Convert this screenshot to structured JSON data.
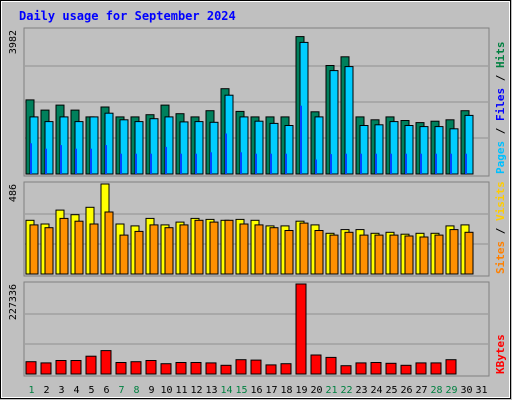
{
  "chart_data": {
    "type": "bar",
    "title": "Daily usage for September 2024",
    "days": [
      "1",
      "2",
      "3",
      "4",
      "5",
      "6",
      "7",
      "8",
      "9",
      "10",
      "11",
      "12",
      "13",
      "14",
      "15",
      "16",
      "17",
      "18",
      "19",
      "20",
      "21",
      "22",
      "23",
      "24",
      "25",
      "26",
      "27",
      "28",
      "29",
      "30",
      "31"
    ],
    "weekend_days": [
      "1",
      "7",
      "8",
      "14",
      "15",
      "21",
      "22",
      "28",
      "29"
    ],
    "panels": [
      {
        "id": "requests",
        "ymax_label": "3982",
        "ymax": 3982,
        "legend": [
          {
            "label": "Pages",
            "color": "#00c0ff"
          },
          {
            "label": "Files",
            "color": "#0000ff"
          },
          {
            "label": "Hits",
            "color": "#008040"
          }
        ],
        "legend_separator": " / ",
        "series": [
          {
            "name": "Hits",
            "color": "#00805c",
            "values": [
              2048,
              1768,
              1904,
              1768,
              1580,
              1852,
              1580,
              1580,
              1640,
              1904,
              1668,
              1580,
              1750,
              2360,
              1730,
              1580,
              1580,
              1580,
              3800,
              1720,
              3000,
              3240,
              1580,
              1500,
              1580,
              1480,
              1420,
              1460,
              1500,
              1750,
              null
            ]
          },
          {
            "name": "Files",
            "color": "#00ccff",
            "values": [
              1580,
              1450,
              1580,
              1450,
              1580,
              1680,
              1500,
              1450,
              1530,
              1580,
              1440,
              1450,
              1430,
              2180,
              1580,
              1460,
              1400,
              1340,
              3640,
              1580,
              2860,
              2970,
              1340,
              1360,
              1450,
              1340,
              1310,
              1310,
              1250,
              1620,
              null
            ]
          },
          {
            "name": "Pages",
            "color": "#0044ff",
            "values": [
              850,
              700,
              800,
              700,
              700,
              800,
              560,
              560,
              560,
              750,
              560,
              560,
              600,
              1120,
              600,
              560,
              560,
              560,
              1890,
              400,
              550,
              560,
              560,
              560,
              560,
              560,
              560,
              560,
              560,
              560,
              null
            ]
          }
        ]
      },
      {
        "id": "visitors",
        "ymax_label": "486",
        "ymax": 486,
        "legend": [
          {
            "label": "Sites",
            "color": "#ff8000"
          },
          {
            "label": "Visits",
            "color": "#ffcc00"
          }
        ],
        "legend_separator": " / ",
        "series": [
          {
            "name": "Visits",
            "color": "#ffff00",
            "values": [
              290,
              270,
              345,
              320,
              360,
              486,
              270,
              260,
              300,
              265,
              280,
              300,
              295,
              290,
              295,
              290,
              260,
              260,
              285,
              265,
              220,
              240,
              240,
              220,
              225,
              215,
              220,
              220,
              260,
              265,
              null
            ]
          },
          {
            "name": "Sites",
            "color": "#ff9000",
            "values": [
              265,
              250,
              300,
              285,
              270,
              335,
              210,
              230,
              265,
              250,
              265,
              290,
              280,
              290,
              270,
              265,
              250,
              235,
              275,
              235,
              210,
              225,
              210,
              210,
              210,
              205,
              200,
              210,
              240,
              225,
              null
            ]
          }
        ]
      },
      {
        "id": "volume",
        "ymax_label": "227336",
        "ymax": 227336,
        "legend": [
          {
            "label": "KBytes",
            "color": "#ff0000"
          }
        ],
        "legend_separator": "",
        "series": [
          {
            "name": "KBytes",
            "color": "#ff0000",
            "values": [
              31000,
              28000,
              34000,
              34000,
              45000,
              59000,
              29000,
              31000,
              34000,
              26000,
              29000,
              29000,
              28000,
              22000,
              36000,
              35000,
              23000,
              26000,
              227336,
              48000,
              42000,
              21000,
              28000,
              29000,
              27000,
              22000,
              28000,
              28000,
              36000,
              null,
              null
            ]
          }
        ]
      }
    ]
  }
}
